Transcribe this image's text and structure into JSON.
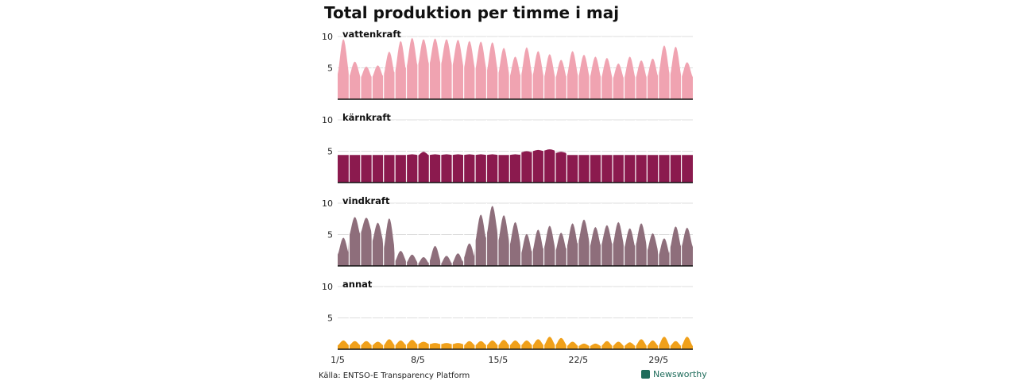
{
  "chart_data": {
    "type": "area",
    "title": "Total produktion per timme i maj",
    "source": "Källa: ENTSO-E Transparency Platform",
    "brand": "Newsworthy",
    "x_ticks": [
      "1/5",
      "8/5",
      "15/5",
      "22/5",
      "29/5"
    ],
    "y_ticks": [
      5,
      10
    ],
    "ylim": [
      0,
      10
    ],
    "xlim_days": [
      1,
      31
    ],
    "series": [
      {
        "name": "vattenkraft",
        "color": "#f0a3b1",
        "daily_max": [
          9.6,
          6.0,
          5.2,
          5.4,
          7.6,
          9.3,
          9.8,
          9.6,
          9.7,
          9.6,
          9.5,
          9.3,
          9.2,
          9.1,
          8.2,
          6.8,
          8.3,
          7.7,
          7.2,
          6.3,
          7.7,
          7.1,
          6.8,
          6.6,
          5.7,
          6.8,
          6.2,
          6.5,
          8.6,
          8.4,
          5.9
        ],
        "daily_min": [
          4.0,
          3.6,
          3.4,
          3.5,
          3.8,
          4.3,
          5.0,
          5.3,
          5.5,
          5.4,
          5.2,
          4.8,
          4.6,
          4.3,
          3.9,
          3.5,
          3.7,
          3.6,
          3.4,
          3.3,
          3.6,
          3.5,
          3.4,
          3.3,
          3.2,
          3.3,
          3.3,
          3.4,
          3.8,
          3.7,
          3.5
        ]
      },
      {
        "name": "kärnkraft",
        "color": "#8b1a4e",
        "daily_max": [
          4.4,
          4.4,
          4.4,
          4.4,
          4.4,
          4.4,
          4.5,
          4.9,
          4.5,
          4.5,
          4.5,
          4.5,
          4.5,
          4.5,
          4.4,
          4.5,
          5.0,
          5.2,
          5.3,
          4.9,
          4.4,
          4.4,
          4.4,
          4.4,
          4.4,
          4.4,
          4.4,
          4.4,
          4.4,
          4.4,
          4.4
        ],
        "daily_min": [
          4.4,
          4.4,
          4.4,
          4.4,
          4.4,
          4.4,
          4.4,
          4.3,
          4.4,
          4.4,
          4.4,
          4.4,
          4.4,
          4.4,
          4.4,
          4.4,
          4.8,
          5.0,
          5.1,
          4.7,
          4.4,
          4.4,
          4.4,
          4.4,
          4.4,
          4.4,
          4.4,
          4.4,
          4.4,
          4.4,
          4.4
        ]
      },
      {
        "name": "vindkraft",
        "color": "#8e6e7b",
        "daily_max": [
          4.5,
          7.8,
          7.7,
          6.9,
          7.6,
          2.4,
          1.8,
          1.4,
          3.2,
          1.6,
          2.0,
          3.6,
          8.2,
          9.6,
          8.1,
          7.0,
          5.1,
          5.8,
          6.4,
          5.3,
          6.8,
          7.4,
          6.2,
          6.5,
          7.0,
          6.0,
          6.8,
          5.2,
          4.4,
          6.3,
          6.1
        ],
        "daily_min": [
          1.8,
          4.8,
          5.2,
          3.8,
          2.6,
          0.7,
          0.5,
          0.3,
          0.7,
          0.3,
          0.4,
          1.2,
          3.8,
          5.0,
          3.8,
          3.2,
          1.9,
          2.3,
          2.8,
          2.3,
          3.0,
          3.8,
          3.0,
          3.2,
          3.3,
          2.8,
          3.2,
          2.3,
          1.6,
          2.8,
          3.0
        ]
      },
      {
        "name": "annat",
        "color": "#f0a01a",
        "daily_max": [
          1.4,
          1.3,
          1.3,
          1.2,
          1.6,
          1.4,
          1.5,
          1.2,
          1.0,
          1.0,
          1.0,
          1.3,
          1.3,
          1.4,
          1.5,
          1.4,
          1.4,
          1.6,
          2.0,
          1.8,
          1.2,
          0.9,
          0.9,
          1.3,
          1.2,
          1.1,
          1.6,
          1.4,
          2.0,
          1.3,
          2.0
        ],
        "daily_min": [
          0.6,
          0.6,
          0.6,
          0.6,
          0.6,
          0.6,
          0.7,
          0.8,
          0.8,
          0.8,
          0.8,
          0.6,
          0.6,
          0.6,
          0.6,
          0.6,
          0.6,
          0.6,
          0.6,
          0.6,
          0.5,
          0.5,
          0.5,
          0.5,
          0.5,
          0.5,
          0.5,
          0.5,
          0.5,
          0.5,
          0.5
        ]
      }
    ]
  }
}
